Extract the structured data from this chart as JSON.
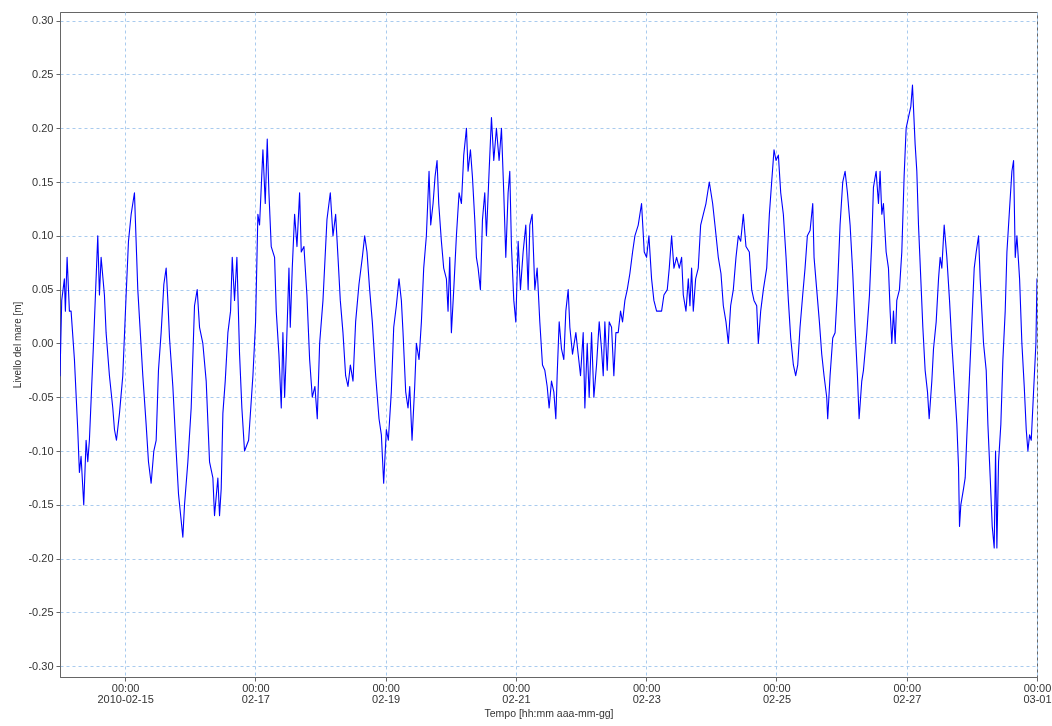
{
  "chart_data": {
    "type": "line",
    "xlabel": "Tempo [hh:mm aaa-mm-gg]",
    "ylabel": "Livello del mare [m]",
    "x": [
      "2010-02-14T00:00",
      "2010-02-14T00:38",
      "2010-02-14T01:37",
      "2010-02-14T01:59",
      "2010-02-14T02:37",
      "2010-02-14T03:28",
      "2010-02-14T04:05",
      "2010-02-14T05:19",
      "2010-02-14T06:32",
      "2010-02-14T07:09",
      "2010-02-14T07:46",
      "2010-02-14T08:45",
      "2010-02-14T09:37",
      "2010-02-14T10:14",
      "2010-02-14T10:50",
      "2010-02-14T12:26",
      "2010-02-14T13:55",
      "2010-02-14T14:32",
      "2010-02-14T15:09",
      "2010-02-14T16:22",
      "2010-02-14T16:59",
      "2010-02-14T18:13",
      "2010-02-14T19:27",
      "2010-02-14T20:04",
      "2010-02-14T20:48",
      "2010-02-14T21:55",
      "2010-02-14T23:08",
      "2010-02-15T00:22",
      "2010-02-15T01:14",
      "2010-02-15T02:13",
      "2010-02-15T03:26",
      "2010-02-15T04:40",
      "2010-02-15T06:31",
      "2010-02-15T07:44",
      "2010-02-15T08:36",
      "2010-02-15T09:35",
      "2010-02-15T10:34",
      "2010-02-15T11:26",
      "2010-02-15T12:17",
      "2010-02-15T13:16",
      "2010-02-15T14:16",
      "2010-02-15T15:07",
      "2010-02-15T15:44",
      "2010-02-15T16:21",
      "2010-02-15T17:35",
      "2010-02-15T18:48",
      "2010-02-15T19:40",
      "2010-02-15T21:16",
      "2010-02-15T21:53",
      "2010-02-15T23:07",
      "2010-02-16T00:20",
      "2010-02-16T01:34",
      "2010-02-16T02:33",
      "2010-02-16T03:25",
      "2010-02-16T04:38",
      "2010-02-16T05:52",
      "2010-02-16T07:06",
      "2010-02-16T08:20",
      "2010-02-16T08:56",
      "2010-02-16T10:10",
      "2010-02-16T10:47",
      "2010-02-16T11:24",
      "2010-02-16T12:01",
      "2010-02-16T12:53",
      "2010-02-16T13:52",
      "2010-02-16T14:51",
      "2010-02-16T15:28",
      "2010-02-16T16:19",
      "2010-02-16T17:11",
      "2010-02-16T18:10",
      "2010-02-16T19:01",
      "2010-02-16T20:00",
      "2010-02-16T21:30",
      "2010-02-16T23:05",
      "2010-02-17T00:04",
      "2010-02-17T00:55",
      "2010-02-17T01:32",
      "2010-02-17T02:46",
      "2010-02-17T03:38",
      "2010-02-17T04:22",
      "2010-02-17T04:59",
      "2010-02-17T05:50",
      "2010-02-17T07:04",
      "2010-02-17T07:41",
      "2010-02-17T08:40",
      "2010-02-17T09:32",
      "2010-02-17T10:08",
      "2010-02-17T10:46",
      "2010-02-17T11:22",
      "2010-02-17T12:22",
      "2010-02-17T12:51",
      "2010-02-17T13:35",
      "2010-02-17T14:27",
      "2010-02-17T15:19",
      "2010-02-17T16:17",
      "2010-02-17T16:54",
      "2010-02-17T17:53",
      "2010-02-17T18:59",
      "2010-02-17T19:59",
      "2010-02-17T20:58",
      "2010-02-17T21:56",
      "2010-02-17T22:48",
      "2010-02-17T23:40",
      "2010-02-18T00:54",
      "2010-02-18T02:22",
      "2010-02-18T03:36",
      "2010-02-18T04:35",
      "2010-02-18T05:34",
      "2010-02-18T06:26",
      "2010-02-18T07:17",
      "2010-02-18T08:16",
      "2010-02-18T09:15",
      "2010-02-18T10:07",
      "2010-02-18T10:59",
      "2010-02-18T11:58",
      "2010-02-18T12:56",
      "2010-02-18T14:10",
      "2010-02-18T15:24",
      "2010-02-18T16:16",
      "2010-02-18T17:07",
      "2010-02-18T18:06",
      "2010-02-18T19:05",
      "2010-02-18T20:19",
      "2010-02-18T21:33",
      "2010-02-18T22:25",
      "2010-02-18T23:16",
      "2010-02-19T00:15",
      "2010-02-19T00:59",
      "2010-02-19T02:05",
      "2010-02-19T02:58",
      "2010-02-19T03:56",
      "2010-02-19T04:55",
      "2010-02-19T05:47",
      "2010-02-19T06:24",
      "2010-02-19T07:23",
      "2010-02-19T08:14",
      "2010-02-19T08:52",
      "2010-02-19T09:43",
      "2010-02-19T10:42",
      "2010-02-19T11:19",
      "2010-02-19T12:18",
      "2010-02-19T13:10",
      "2010-02-19T14:01",
      "2010-02-19T15:00",
      "2010-02-19T15:59",
      "2010-02-19T16:36",
      "2010-02-19T17:28",
      "2010-02-19T18:12",
      "2010-02-19T18:56",
      "2010-02-19T19:33",
      "2010-02-19T20:32",
      "2010-02-19T21:23",
      "2010-02-19T22:23",
      "2010-02-19T22:59",
      "2010-02-19T23:37",
      "2010-02-20T00:13",
      "2010-02-20T01:05",
      "2010-02-20T02:04",
      "2010-02-20T03:03",
      "2010-02-20T03:55",
      "2010-02-20T04:46",
      "2010-02-20T05:46",
      "2010-02-20T06:22",
      "2010-02-20T07:14",
      "2010-02-20T07:58",
      "2010-02-20T08:50",
      "2010-02-20T09:26",
      "2010-02-20T10:04",
      "2010-02-20T10:55",
      "2010-02-20T11:40",
      "2010-02-20T12:31",
      "2010-02-20T13:08",
      "2010-02-20T14:07",
      "2010-02-20T14:59",
      "2010-02-20T15:50",
      "2010-02-20T16:49",
      "2010-02-20T17:48",
      "2010-02-20T18:40",
      "2010-02-20T19:31",
      "2010-02-20T20:16",
      "2010-02-20T21:07",
      "2010-02-20T21:44",
      "2010-02-20T22:21",
      "2010-02-20T23:13",
      "2010-02-20T23:57",
      "2010-02-21T00:49",
      "2010-02-21T01:40",
      "2010-02-21T02:39",
      "2010-02-21T03:38",
      "2010-02-21T04:30",
      "2010-02-21T05:07",
      "2010-02-21T05:58",
      "2010-02-21T06:58",
      "2010-02-21T07:49",
      "2010-02-21T08:48",
      "2010-02-21T09:47",
      "2010-02-21T10:39",
      "2010-02-21T11:31",
      "2010-02-21T12:14",
      "2010-02-21T13:06",
      "2010-02-21T13:58",
      "2010-02-21T14:42",
      "2010-02-21T15:11",
      "2010-02-21T15:56",
      "2010-02-21T16:47",
      "2010-02-21T17:39",
      "2010-02-21T18:23",
      "2010-02-21T19:15",
      "2010-02-21T19:52",
      "2010-02-21T20:51",
      "2010-02-21T22:05",
      "2010-02-21T22:56",
      "2010-02-21T23:48",
      "2010-02-22T00:47",
      "2010-02-22T01:24",
      "2010-02-22T02:16",
      "2010-02-22T02:59",
      "2010-02-22T03:52",
      "2010-02-22T04:43",
      "2010-02-22T05:42",
      "2010-02-22T06:41",
      "2010-02-22T07:32",
      "2010-02-22T08:10",
      "2010-02-22T08:46",
      "2010-02-22T09:38",
      "2010-02-22T10:22",
      "2010-02-22T11:14",
      "2010-02-22T12:05",
      "2010-02-22T12:50",
      "2010-02-22T13:41",
      "2010-02-22T14:33",
      "2010-02-22T15:17",
      "2010-02-22T16:09",
      "2010-02-22T17:01",
      "2010-02-22T17:59",
      "2010-02-22T18:59",
      "2010-02-22T19:50",
      "2010-02-22T21:04",
      "2010-02-22T22:17",
      "2010-02-22T23:17",
      "2010-02-23T00:08",
      "2010-02-23T01:00",
      "2010-02-23T01:59",
      "2010-02-23T02:50",
      "2010-02-23T03:50",
      "2010-02-23T05:40",
      "2010-02-23T06:32",
      "2010-02-23T07:46",
      "2010-02-23T08:30",
      "2010-02-23T09:22",
      "2010-02-23T10:13",
      "2010-02-23T11:12",
      "2010-02-23T12:11",
      "2010-02-23T13:03",
      "2010-02-23T13:40",
      "2010-02-23T14:39",
      "2010-02-23T15:31",
      "2010-02-23T16:07",
      "2010-02-23T16:44",
      "2010-02-23T17:21",
      "2010-02-23T18:13",
      "2010-02-23T19:11",
      "2010-02-23T20:04",
      "2010-02-23T21:02",
      "2010-02-23T22:01",
      "2010-02-23T23:15",
      "2010-02-24T00:29",
      "2010-02-24T01:20",
      "2010-02-24T02:34",
      "2010-02-24T03:33",
      "2010-02-24T04:25",
      "2010-02-24T05:24",
      "2010-02-24T06:16",
      "2010-02-24T07:07",
      "2010-02-24T08:06",
      "2010-02-24T09:05",
      "2010-02-24T09:57",
      "2010-02-24T10:49",
      "2010-02-24T11:47",
      "2010-02-24T12:46",
      "2010-02-24T14:00",
      "2010-02-24T14:52",
      "2010-02-24T15:43",
      "2010-02-24T16:43",
      "2010-02-24T17:19",
      "2010-02-24T18:11",
      "2010-02-24T19:10",
      "2010-02-24T20:24",
      "2010-02-24T21:23",
      "2010-02-24T22:14",
      "2010-02-24T23:06",
      "2010-02-24T23:50",
      "2010-02-25T00:42",
      "2010-02-25T01:34",
      "2010-02-25T02:32",
      "2010-02-25T03:32",
      "2010-02-25T04:23",
      "2010-02-25T05:15",
      "2010-02-25T06:14",
      "2010-02-25T07:05",
      "2010-02-25T07:50",
      "2010-02-25T08:41",
      "2010-02-25T09:40",
      "2010-02-25T10:32",
      "2010-02-25T11:23",
      "2010-02-25T12:23",
      "2010-02-25T13:22",
      "2010-02-25T13:51",
      "2010-02-25T14:50",
      "2010-02-25T15:49",
      "2010-02-25T16:41",
      "2010-02-25T17:32",
      "2010-02-25T18:31",
      "2010-02-25T18:53",
      "2010-02-25T19:45",
      "2010-02-25T20:44",
      "2010-02-25T21:36",
      "2010-02-25T22:28",
      "2010-02-25T23:26",
      "2010-02-26T00:25",
      "2010-02-26T01:17",
      "2010-02-26T02:09",
      "2010-02-26T03:08",
      "2010-02-26T04:07",
      "2010-02-26T04:58",
      "2010-02-26T05:50",
      "2010-02-26T06:27",
      "2010-02-26T07:26",
      "2010-02-26T08:03",
      "2010-02-26T09:17",
      "2010-02-26T10:16",
      "2010-02-26T11:07",
      "2010-02-26T11:44",
      "2010-02-26T12:43",
      "2010-02-26T13:35",
      "2010-02-26T14:11",
      "2010-02-26T14:49",
      "2010-02-26T15:25",
      "2010-02-26T16:25",
      "2010-02-26T17:16",
      "2010-02-26T17:53",
      "2010-02-26T18:30",
      "2010-02-26T19:07",
      "2010-02-26T19:44",
      "2010-02-26T20:20",
      "2010-02-26T21:19",
      "2010-02-26T22:11",
      "2010-02-26T23:02",
      "2010-02-26T23:47",
      "2010-02-27T00:38",
      "2010-02-27T01:30",
      "2010-02-27T02:07",
      "2010-02-27T03:06",
      "2010-02-27T03:43",
      "2010-02-27T04:20",
      "2010-02-27T05:11",
      "2010-02-27T05:56",
      "2010-02-27T06:47",
      "2010-02-27T07:39",
      "2010-02-27T08:16",
      "2010-02-27T09:15",
      "2010-02-27T09:52",
      "2010-02-27T10:51",
      "2010-02-27T11:43",
      "2010-02-27T12:19",
      "2010-02-27T12:56",
      "2010-02-27T13:48",
      "2010-02-27T14:47",
      "2010-02-27T15:46",
      "2010-02-27T16:37",
      "2010-02-27T17:29",
      "2010-02-27T18:28",
      "2010-02-27T19:05",
      "2010-02-27T19:27",
      "2010-02-27T19:56",
      "2010-02-27T20:56",
      "2010-02-27T21:32",
      "2010-02-27T22:10",
      "2010-02-27T23:08",
      "2010-02-28T00:00",
      "2010-02-28T00:52",
      "2010-02-28T01:36",
      "2010-02-28T02:28",
      "2010-02-28T03:04",
      "2010-02-28T03:41",
      "2010-02-28T04:18",
      "2010-02-28T05:17",
      "2010-02-28T05:54",
      "2010-02-28T06:46",
      "2010-02-28T07:30",
      "2010-02-28T08:14",
      "2010-02-28T08:44",
      "2010-02-28T09:13",
      "2010-02-28T09:50",
      "2010-02-28T10:41",
      "2010-02-28T11:26",
      "2010-02-28T12:17",
      "2010-02-28T12:55",
      "2010-02-28T13:53",
      "2010-02-28T14:45",
      "2010-02-28T15:22",
      "2010-02-28T15:59",
      "2010-02-28T16:36",
      "2010-02-28T17:35",
      "2010-02-28T18:26",
      "2010-02-28T19:18",
      "2010-02-28T20:02",
      "2010-02-28T20:39",
      "2010-02-28T21:16",
      "2010-02-28T21:53",
      "2010-02-28T22:44",
      "2010-02-28T23:36",
      "2010-03-01T00:00"
    ],
    "series": [
      {
        "color": "#0000ff",
        "values": [
          -0.03,
          0.04,
          0.06,
          0.03,
          0.08,
          0.03,
          0.03,
          -0.015,
          -0.08,
          -0.12,
          -0.105,
          -0.15,
          -0.09,
          -0.11,
          -0.09,
          0.005,
          0.1,
          0.045,
          0.08,
          0.045,
          0.01,
          -0.03,
          -0.06,
          -0.08,
          -0.09,
          -0.065,
          -0.03,
          0.045,
          0.095,
          0.12,
          0.14,
          0.05,
          -0.03,
          -0.075,
          -0.11,
          -0.13,
          -0.1,
          -0.09,
          -0.025,
          0.01,
          0.055,
          0.07,
          0.04,
          0.005,
          -0.04,
          -0.1,
          -0.14,
          -0.18,
          -0.15,
          -0.11,
          -0.06,
          0.035,
          0.05,
          0.015,
          0,
          -0.035,
          -0.11,
          -0.125,
          -0.16,
          -0.125,
          -0.16,
          -0.135,
          -0.065,
          -0.035,
          0.01,
          0.03,
          0.08,
          0.04,
          0.08,
          -0.01,
          -0.06,
          -0.1,
          -0.09,
          -0.03,
          0.02,
          0.12,
          0.11,
          0.18,
          0.13,
          0.19,
          0.14,
          0.09,
          0.08,
          0.03,
          -0.01,
          -0.06,
          0.01,
          -0.05,
          -0.01,
          0.07,
          0.015,
          0.07,
          0.12,
          0.09,
          0.14,
          0.085,
          0.09,
          0.045,
          -0.015,
          -0.05,
          -0.04,
          -0.07,
          0,
          0.04,
          0.115,
          0.14,
          0.1,
          0.12,
          0.08,
          0.04,
          0.01,
          -0.03,
          -0.04,
          -0.02,
          -0.035,
          0.02,
          0.055,
          0.08,
          0.1,
          0.085,
          0.05,
          0.02,
          -0.03,
          -0.07,
          -0.085,
          -0.13,
          -0.08,
          -0.09,
          -0.045,
          0.015,
          0.035,
          0.06,
          0.04,
          0.01,
          -0.045,
          -0.06,
          -0.04,
          -0.09,
          -0.04,
          0,
          -0.015,
          0.02,
          0.07,
          0.1,
          0.16,
          0.11,
          0.13,
          0.155,
          0.17,
          0.13,
          0.095,
          0.07,
          0.06,
          0.03,
          0.08,
          0.01,
          0.05,
          0.1,
          0.14,
          0.13,
          0.175,
          0.2,
          0.16,
          0.18,
          0.155,
          0.115,
          0.08,
          0.07,
          0.05,
          0.115,
          0.14,
          0.1,
          0.16,
          0.21,
          0.17,
          0.2,
          0.17,
          0.2,
          0.14,
          0.08,
          0.14,
          0.16,
          0.09,
          0.04,
          0.02,
          0.095,
          0.05,
          0.085,
          0.11,
          0.05,
          0.11,
          0.12,
          0.05,
          0.07,
          0.02,
          -0.02,
          -0.025,
          -0.04,
          -0.06,
          -0.035,
          -0.045,
          -0.07,
          -0.03,
          0.02,
          -0.005,
          -0.015,
          0.03,
          0.05,
          0.015,
          -0.01,
          0.01,
          -0.01,
          -0.03,
          0.01,
          -0.06,
          0,
          -0.05,
          0.01,
          -0.05,
          -0.02,
          0.02,
          -0.005,
          -0.03,
          0.02,
          -0.025,
          0.02,
          0.015,
          -0.03,
          0.01,
          0.01,
          0.03,
          0.02,
          0.04,
          0.05,
          0.065,
          0.085,
          0.1,
          0.11,
          0.13,
          0.085,
          0.08,
          0.1,
          0.06,
          0.04,
          0.03,
          0.03,
          0.045,
          0.05,
          0.07,
          0.1,
          0.07,
          0.08,
          0.07,
          0.08,
          0.045,
          0.03,
          0.06,
          0.035,
          0.07,
          0.03,
          0.06,
          0.07,
          0.11,
          0.12,
          0.13,
          0.15,
          0.13,
          0.11,
          0.08,
          0.065,
          0.035,
          0.02,
          0,
          0.035,
          0.05,
          0.08,
          0.1,
          0.095,
          0.12,
          0.09,
          0.085,
          0.05,
          0.04,
          0.035,
          0,
          0.03,
          0.05,
          0.07,
          0.12,
          0.15,
          0.18,
          0.17,
          0.175,
          0.14,
          0.12,
          0.08,
          0.04,
          0.005,
          -0.02,
          -0.03,
          -0.02,
          0.015,
          0.045,
          0.07,
          0.1,
          0.105,
          0.13,
          0.08,
          0.05,
          0.02,
          -0.01,
          -0.03,
          -0.05,
          -0.07,
          -0.03,
          0.005,
          0.01,
          0.05,
          0.11,
          0.15,
          0.16,
          0.14,
          0.11,
          0.065,
          0.015,
          -0.03,
          -0.07,
          -0.035,
          -0.025,
          0.01,
          0.045,
          0.095,
          0.145,
          0.16,
          0.13,
          0.16,
          0.12,
          0.13,
          0.085,
          0.07,
          0.03,
          0,
          0.03,
          0,
          0.04,
          0.05,
          0.085,
          0.155,
          0.2,
          0.21,
          0.22,
          0.24,
          0.185,
          0.16,
          0.11,
          0.06,
          0.015,
          -0.025,
          -0.045,
          -0.07,
          -0.035,
          -0.005,
          0.02,
          0.06,
          0.08,
          0.07,
          0.11,
          0.08,
          0.04,
          0,
          -0.035,
          -0.075,
          -0.115,
          -0.17,
          -0.15,
          -0.135,
          -0.125,
          -0.085,
          -0.03,
          0.02,
          0.07,
          0.085,
          0.1,
          0.06,
          0.03,
          0,
          -0.025,
          -0.075,
          -0.125,
          -0.17,
          -0.19,
          -0.1,
          -0.19,
          -0.11,
          -0.075,
          -0.015,
          0.03,
          0.085,
          0.125,
          0.16,
          0.17,
          0.08,
          0.1,
          0.06,
          0,
          -0.04,
          -0.08,
          -0.1,
          -0.085,
          -0.09,
          -0.045,
          0,
          0.06
        ]
      }
    ],
    "xlim": [
      "2010-02-14T00:00",
      "2010-03-01T00:00"
    ],
    "xticks": [
      {
        "value": "2010-02-15T00:00",
        "label": "00:00\n2010-02-15"
      },
      {
        "value": "2010-02-17T00:00",
        "label": "00:00\n02-17"
      },
      {
        "value": "2010-02-19T00:00",
        "label": "00:00\n02-19"
      },
      {
        "value": "2010-02-21T00:00",
        "label": "00:00\n02-21"
      },
      {
        "value": "2010-02-23T00:00",
        "label": "00:00\n02-23"
      },
      {
        "value": "2010-02-25T00:00",
        "label": "00:00\n02-25"
      },
      {
        "value": "2010-02-27T00:00",
        "label": "00:00\n02-27"
      },
      {
        "value": "2010-03-01T00:00",
        "label": "00:00\n03-01"
      }
    ],
    "ylim": [
      -0.31,
      0.308
    ],
    "yticks": [
      {
        "value": 0.3,
        "label": "0.30"
      },
      {
        "value": 0.25,
        "label": "0.25"
      },
      {
        "value": 0.2,
        "label": "0.20"
      },
      {
        "value": 0.15,
        "label": "0.15"
      },
      {
        "value": 0.1,
        "label": "0.10"
      },
      {
        "value": 0.05,
        "label": "0.05"
      },
      {
        "value": 0,
        "label": "0.00"
      },
      {
        "value": -0.05,
        "label": "-0.05"
      },
      {
        "value": -0.1,
        "label": "-0.10"
      },
      {
        "value": -0.15,
        "label": "-0.15"
      },
      {
        "value": -0.2,
        "label": "-0.20"
      },
      {
        "value": -0.25,
        "label": "-0.25"
      },
      {
        "value": -0.3,
        "label": "-0.30"
      }
    ],
    "grid": true
  }
}
